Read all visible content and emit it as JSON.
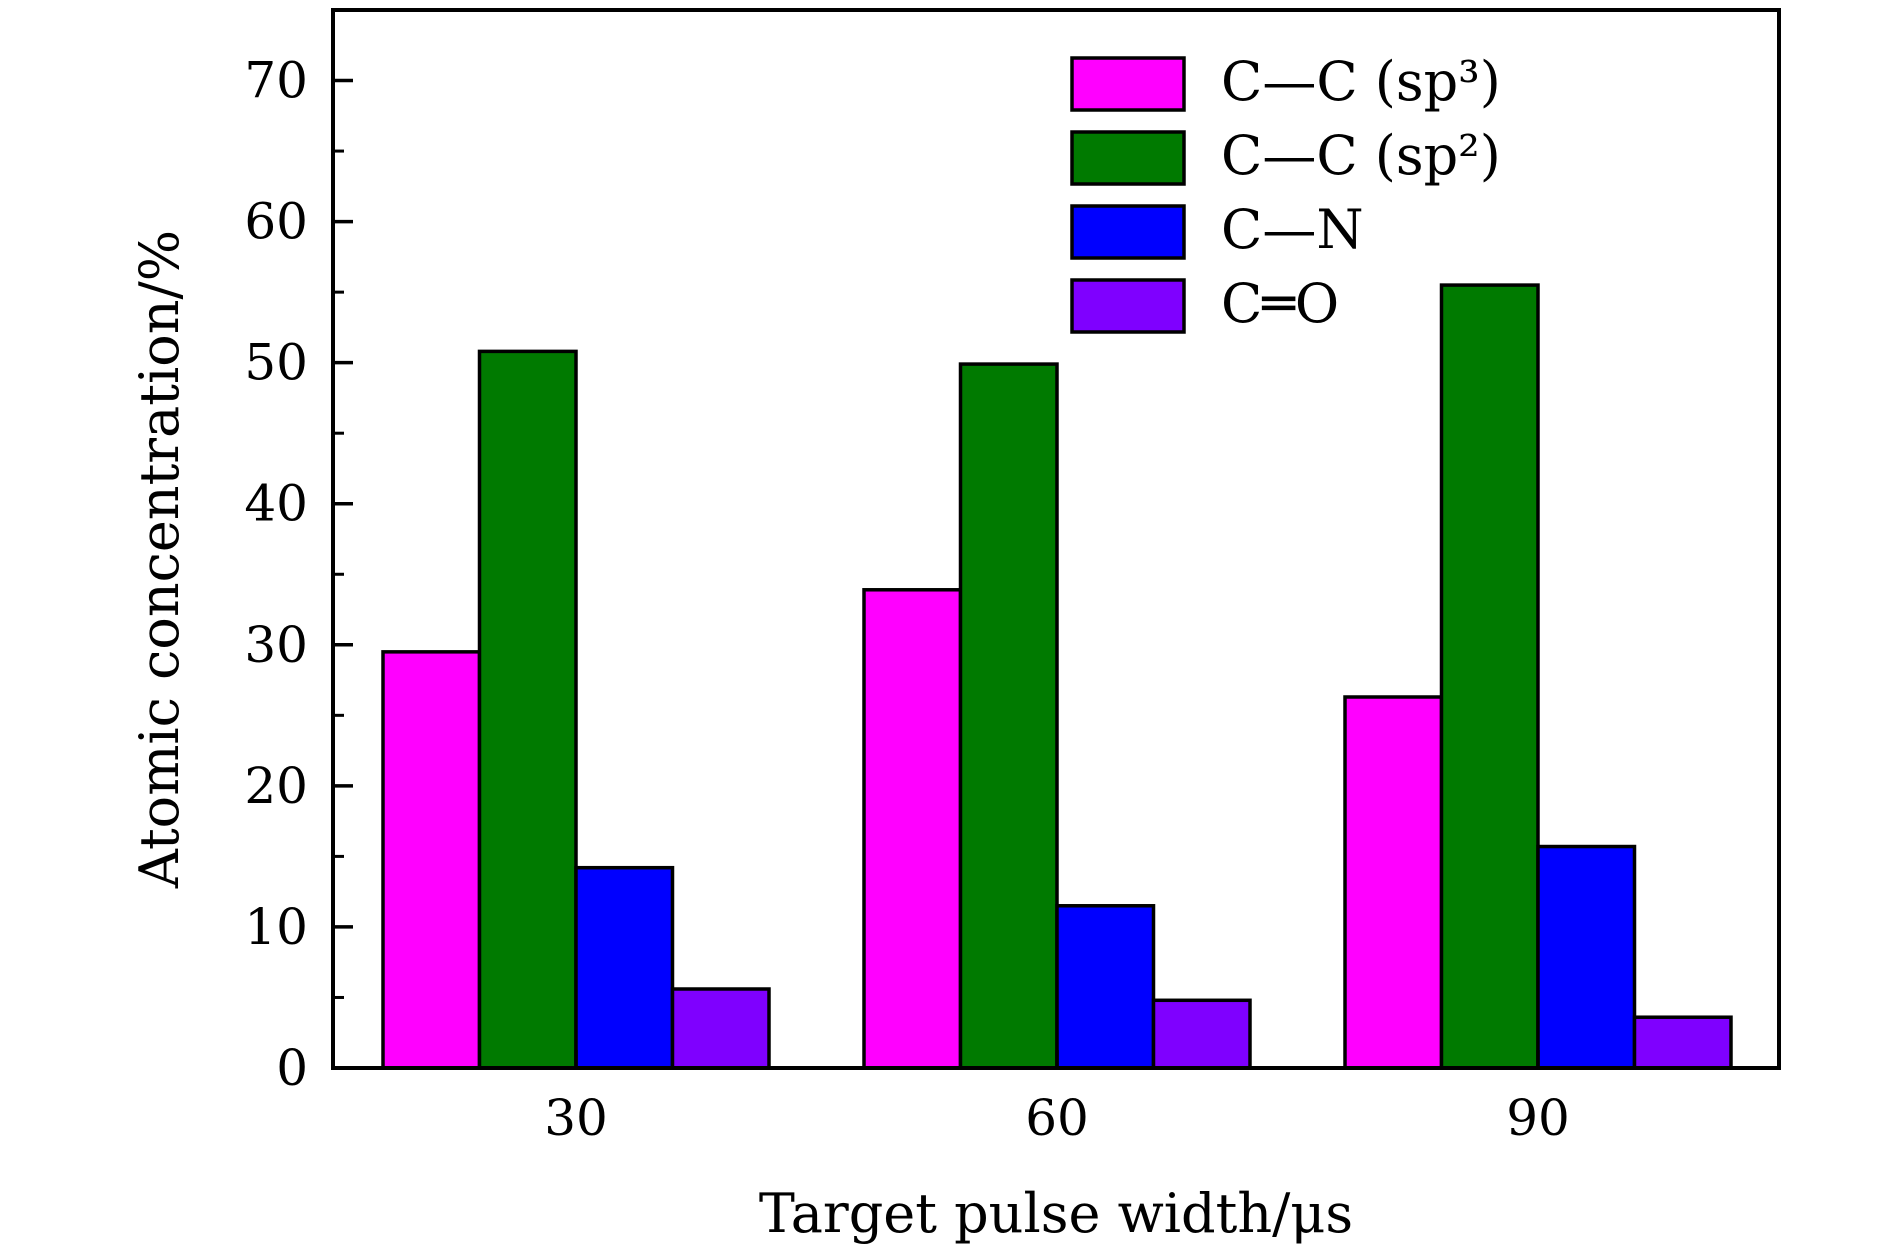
{
  "chart_data": {
    "type": "bar",
    "xlabel": "Target pulse width/μs",
    "ylabel": "Atomic concentration/%",
    "categories": [
      "30",
      "60",
      "90"
    ],
    "ylim": [
      0,
      75
    ],
    "yticks": [
      0,
      10,
      20,
      30,
      40,
      50,
      60,
      70
    ],
    "grid": false,
    "legend_position": "top-right",
    "series": [
      {
        "name": "C—C (sp³)",
        "color": "#ff00ff",
        "values": [
          29.5,
          33.9,
          26.3
        ]
      },
      {
        "name": "C—C (sp²)",
        "color": "#007a00",
        "values": [
          50.8,
          49.9,
          55.5
        ]
      },
      {
        "name": "C—N",
        "color": "#0000ff",
        "values": [
          14.2,
          11.5,
          15.7
        ]
      },
      {
        "name": "C═O",
        "color": "#7f00ff",
        "values": [
          5.6,
          4.8,
          3.6
        ]
      }
    ]
  }
}
